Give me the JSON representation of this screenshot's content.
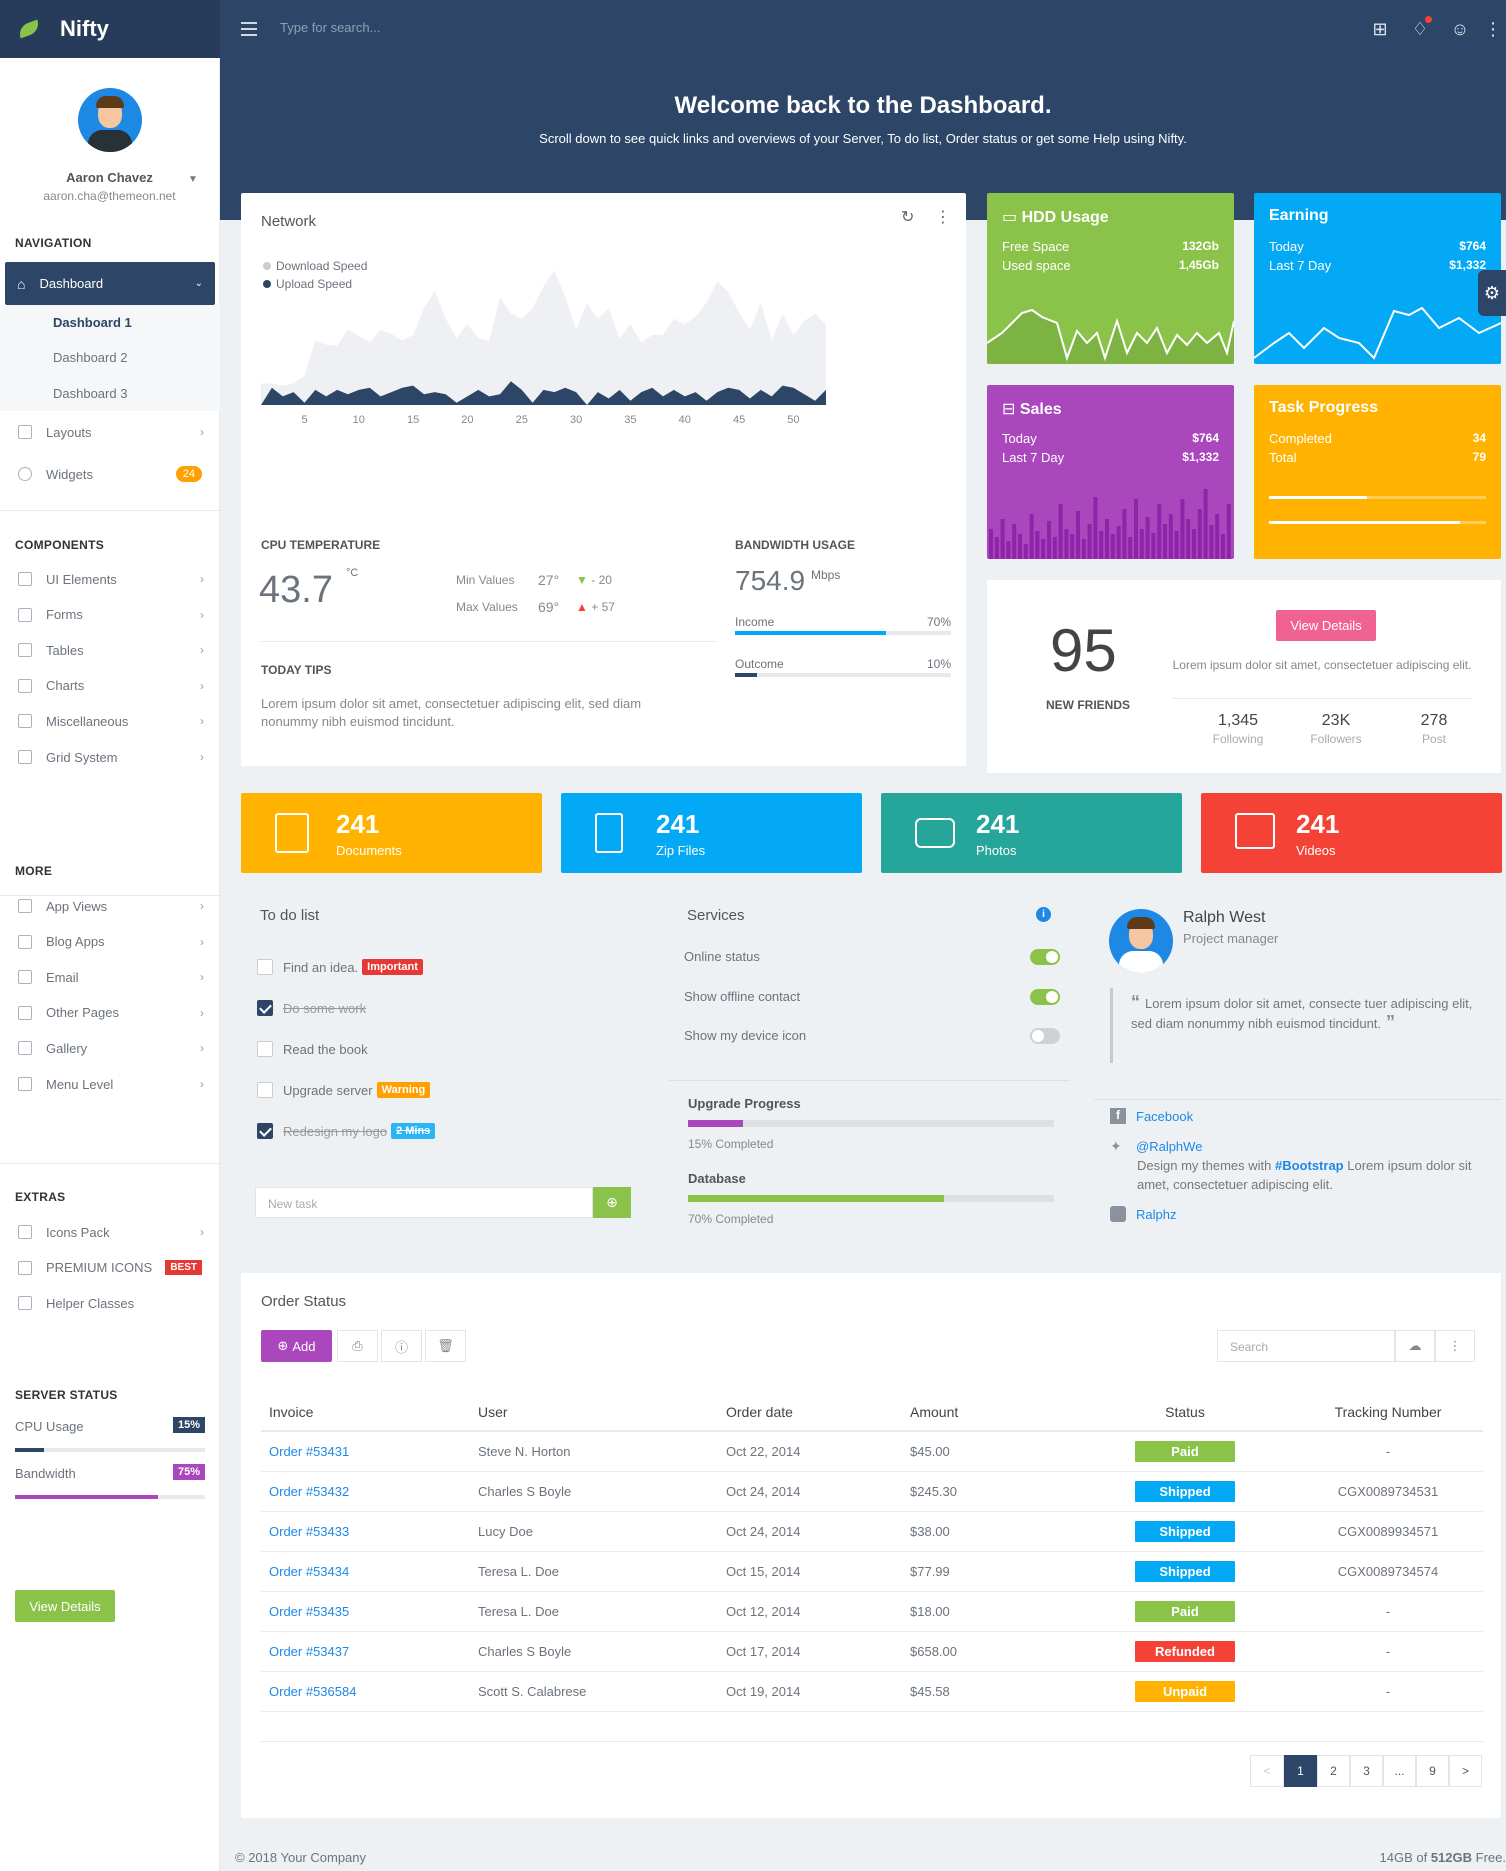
{
  "brand": {
    "name": "Nifty"
  },
  "topbar": {
    "search_placeholder": "Type for search..."
  },
  "hero": {
    "title": "Welcome back to the Dashboard.",
    "subtitle": "Scroll down to see quick links and overviews of your Server, To do list, Order status or get some Help using Nifty."
  },
  "profile": {
    "name": "Aaron Chavez",
    "email": "aaron.cha@themeon.net"
  },
  "sidebar": {
    "nav_title": "NAVIGATION",
    "dashboard": "Dashboard",
    "subs": [
      "Dashboard 1",
      "Dashboard 2",
      "Dashboard 3"
    ],
    "nav_items": [
      "Layouts",
      "Widgets"
    ],
    "widgets_badge": "24",
    "components_title": "COMPONENTS",
    "components": [
      "UI Elements",
      "Forms",
      "Tables",
      "Charts",
      "Miscellaneous",
      "Grid System"
    ],
    "more_title": "MORE",
    "more": [
      "App Views",
      "Blog Apps",
      "Email",
      "Other Pages",
      "Gallery",
      "Menu Level"
    ],
    "extras_title": "EXTRAS",
    "extras": [
      "Icons Pack",
      "PREMIUM ICONS",
      "Helper Classes"
    ],
    "best_badge": "BEST",
    "server_title": "SERVER STATUS",
    "cpu_label": "CPU Usage",
    "cpu_value": "15%",
    "cpu_pct": 15,
    "bw_label": "Bandwidth",
    "bw_value": "75%",
    "bw_pct": 75,
    "view_details": "View Details"
  },
  "network": {
    "title": "Network",
    "legend": [
      "Download Speed",
      "Upload Speed"
    ],
    "x_ticks": [
      "5",
      "10",
      "15",
      "20",
      "25",
      "30",
      "35",
      "40",
      "45",
      "50"
    ],
    "cpu_title": "CPU TEMPERATURE",
    "cpu_value": "43.7",
    "cpu_unit": "°C",
    "min_label": "Min Values",
    "min_value": "27°",
    "min_delta": "- 20",
    "max_label": "Max Values",
    "max_value": "69°",
    "max_delta": "+ 57",
    "tips_title": "TODAY TIPS",
    "tips_text": "Lorem ipsum dolor sit amet, consectetuer adipiscing elit, sed diam nonummy nibh euismod tincidunt.",
    "bw_title": "BANDWIDTH USAGE",
    "bw_value": "754.9",
    "bw_unit": "Mbps",
    "income_label": "Income",
    "income_value": "70%",
    "income_pct": 70,
    "outcome_label": "Outcome",
    "outcome_value": "10%",
    "outcome_pct": 10
  },
  "chart_data": {
    "type": "area",
    "title": "Network",
    "x": [
      1,
      2,
      3,
      4,
      5,
      6,
      7,
      8,
      9,
      10,
      11,
      12,
      13,
      14,
      15,
      16,
      17,
      18,
      19,
      20,
      21,
      22,
      23,
      24,
      25,
      26,
      27,
      28,
      29,
      30,
      31,
      32,
      33,
      34,
      35,
      36,
      37,
      38,
      39,
      40,
      41,
      42,
      43,
      44,
      45,
      46,
      47,
      48,
      49,
      50,
      51,
      52,
      53
    ],
    "series": [
      {
        "name": "Download Speed",
        "values": [
          20,
          20,
          18,
          20,
          27,
          60,
          56,
          55,
          70,
          64,
          58,
          70,
          66,
          60,
          65,
          90,
          106,
          80,
          62,
          75,
          62,
          60,
          100,
          85,
          80,
          90,
          110,
          125,
          100,
          70,
          95,
          80,
          90,
          62,
          75,
          58,
          65,
          65,
          80,
          75,
          82,
          95,
          115,
          105,
          86,
          70,
          95,
          60,
          85,
          65,
          78,
          85,
          75
        ]
      },
      {
        "name": "Upload Speed",
        "values": [
          0,
          16,
          8,
          12,
          2,
          14,
          8,
          14,
          10,
          14,
          16,
          8,
          12,
          16,
          18,
          10,
          12,
          10,
          2,
          8,
          14,
          8,
          10,
          22,
          14,
          2,
          14,
          12,
          16,
          12,
          0,
          12,
          6,
          14,
          4,
          12,
          16,
          8,
          14,
          8,
          12,
          4,
          12,
          16,
          14,
          6,
          14,
          8,
          18,
          16,
          10,
          4,
          14
        ]
      }
    ],
    "x_ticks": [
      5,
      10,
      15,
      20,
      25,
      30,
      35,
      40,
      45,
      50
    ]
  },
  "tiles": {
    "hdd": {
      "title": "HDD Usage",
      "r1_label": "Free Space",
      "r1_value": "132Gb",
      "r2_label": "Used space",
      "r2_value": "1,45Gb"
    },
    "earning": {
      "title": "Earning",
      "r1_label": "Today",
      "r1_value": "$764",
      "r2_label": "Last 7 Day",
      "r2_value": "$1,332"
    },
    "sales": {
      "title": "Sales",
      "r1_label": "Today",
      "r1_value": "$764",
      "r2_label": "Last 7 Day",
      "r2_value": "$1,332"
    },
    "task": {
      "title": "Task Progress",
      "r1_label": "Completed",
      "r1_value": "34",
      "r2_label": "Total",
      "r2_value": "79",
      "p1": 0.45,
      "p2": 0.88
    }
  },
  "friends": {
    "count": "95",
    "label": "NEW FRIENDS",
    "button": "View Details",
    "text": "Lorem ipsum dolor sit amet, consectetuer adipiscing elit.",
    "stats": [
      {
        "v": "1,345",
        "l": "Following"
      },
      {
        "v": "23K",
        "l": "Followers"
      },
      {
        "v": "278",
        "l": "Post"
      }
    ]
  },
  "stats": [
    {
      "n": "241",
      "l": "Documents",
      "color": "#ffb300"
    },
    {
      "n": "241",
      "l": "Zip Files",
      "color": "#03a9f4"
    },
    {
      "n": "241",
      "l": "Photos",
      "color": "#26a69a"
    },
    {
      "n": "241",
      "l": "Videos",
      "color": "#f44336"
    }
  ],
  "todo": {
    "title": "To do list",
    "items": [
      {
        "t": "Find an idea.",
        "label": "Important",
        "lc": "#e53935",
        "done": false
      },
      {
        "t": "Do some work",
        "label": "",
        "lc": "",
        "done": true
      },
      {
        "t": "Read the book",
        "label": "",
        "lc": "",
        "done": false
      },
      {
        "t": "Upgrade server",
        "label": "Warning",
        "lc": "#ffa000",
        "done": false
      },
      {
        "t": "Redesign my logo",
        "label": "2 Mins",
        "lc": "#29b6f6",
        "done": true
      }
    ],
    "placeholder": "New task"
  },
  "services": {
    "title": "Services",
    "items": [
      "Online status",
      "Show offline contact",
      "Show my device icon"
    ],
    "states": [
      true,
      true,
      false
    ],
    "up_title": "Upgrade Progress",
    "up_text": "15% Completed",
    "up_pct": 15,
    "db_title": "Database",
    "db_text": "70% Completed",
    "db_pct": 70
  },
  "person": {
    "name": "Ralph West",
    "role": "Project manager",
    "quote": "Lorem ipsum dolor sit amet, consecte tuer adipiscing elit, sed diam nonummy nibh euismod tincidunt.",
    "facebook": "Facebook",
    "twitter": "@RalphWe",
    "tweet_a": "Design my themes with ",
    "tweet_b": "#Bootstrap",
    "tweet_c": " Lorem ipsum dolor sit amet, consectetuer adipiscing elit.",
    "instagram": "Ralphz"
  },
  "orders": {
    "title": "Order Status",
    "add": "Add",
    "search": "Search",
    "headers": [
      "Invoice",
      "User",
      "Order date",
      "Amount",
      "Status",
      "Tracking Number"
    ],
    "rows": [
      {
        "inv": "Order #53431",
        "user": "Steve N. Horton",
        "date": "Oct 22, 2014",
        "amt": "$45.00",
        "status": "Paid",
        "sc": "#8bc34a",
        "trk": "-"
      },
      {
        "inv": "Order #53432",
        "user": "Charles S Boyle",
        "date": "Oct 24, 2014",
        "amt": "$245.30",
        "status": "Shipped",
        "sc": "#03a9f4",
        "trk": "CGX0089734531"
      },
      {
        "inv": "Order #53433",
        "user": "Lucy Doe",
        "date": "Oct 24, 2014",
        "amt": "$38.00",
        "status": "Shipped",
        "sc": "#03a9f4",
        "trk": "CGX0089934571"
      },
      {
        "inv": "Order #53434",
        "user": "Teresa L. Doe",
        "date": "Oct 15, 2014",
        "amt": "$77.99",
        "status": "Shipped",
        "sc": "#03a9f4",
        "trk": "CGX0089734574"
      },
      {
        "inv": "Order #53435",
        "user": "Teresa L. Doe",
        "date": "Oct 12, 2014",
        "amt": "$18.00",
        "status": "Paid",
        "sc": "#8bc34a",
        "trk": "-"
      },
      {
        "inv": "Order #53437",
        "user": "Charles S Boyle",
        "date": "Oct 17, 2014",
        "amt": "$658.00",
        "status": "Refunded",
        "sc": "#f44336",
        "trk": "-"
      },
      {
        "inv": "Order #536584",
        "user": "Scott S. Calabrese",
        "date": "Oct 19, 2014",
        "amt": "$45.58",
        "status": "Unpaid",
        "sc": "#ffb300",
        "trk": "-"
      }
    ],
    "pages": [
      "<",
      "1",
      "2",
      "3",
      "...",
      "9",
      ">"
    ]
  },
  "footer": {
    "left": "© 2018 Your Company",
    "right_a": "14GB of ",
    "right_b": "512GB",
    "right_c": " Free."
  }
}
